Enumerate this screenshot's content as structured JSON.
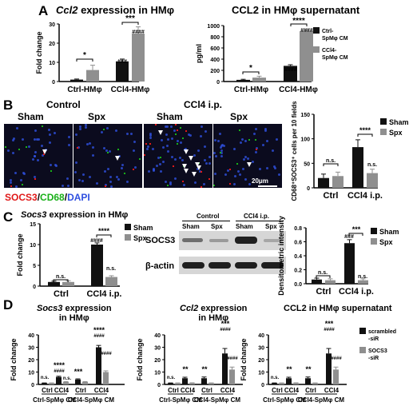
{
  "panels": {
    "A": "A",
    "B": "B",
    "C": "C",
    "D": "D"
  },
  "chart_data": [
    {
      "id": "a1",
      "type": "bar",
      "title_pre": "",
      "title_it": "Ccl2",
      "title_post": " expression in HMφ",
      "ylabel": "Fold change",
      "yticks": [
        "0",
        "10",
        "20",
        "30"
      ],
      "ylim": [
        0,
        30
      ],
      "categories": [
        "Ctrl-HMφ",
        "CCl4-HMφ"
      ],
      "series": [
        {
          "color": "#111111",
          "values": [
            1,
            10.5
          ],
          "err": [
            0.3,
            1.2
          ]
        },
        {
          "color": "#8f8f8f",
          "values": [
            6,
            25
          ],
          "err": [
            2.5,
            3.5
          ]
        }
      ],
      "annotations": [
        "*",
        "***",
        "###",
        "####"
      ]
    },
    {
      "id": "a2",
      "type": "bar",
      "title": "CCL2 in HMφ supernatant",
      "ylabel": "pg/ml",
      "yticks": [
        "0",
        "200",
        "400",
        "600",
        "800",
        "1000"
      ],
      "ylim": [
        0,
        1000
      ],
      "categories": [
        "Ctrl-HMφ",
        "CCl4-HMφ"
      ],
      "series": [
        {
          "name": "Ctrl-SpMφ CM",
          "color": "#111111",
          "values": [
            30,
            280
          ],
          "err": [
            10,
            20
          ]
        },
        {
          "name": "CCl4-SpMφ CM",
          "color": "#8f8f8f",
          "values": [
            70,
            900
          ],
          "err": [
            25,
            30
          ]
        }
      ],
      "annotations": [
        "*",
        "****",
        "####",
        "####"
      ]
    },
    {
      "id": "b",
      "type": "bar",
      "ylabel": "CD68⁺SOCS3⁺ cells per 10 fields",
      "yticks": [
        "0",
        "50",
        "100",
        "150"
      ],
      "ylim": [
        0,
        150
      ],
      "categories": [
        "Ctrl",
        "CCl4 i.p."
      ],
      "series": [
        {
          "name": "Sham",
          "color": "#111111",
          "values": [
            20,
            83
          ],
          "err": [
            8,
            15
          ]
        },
        {
          "name": "Spx",
          "color": "#8f8f8f",
          "values": [
            24,
            30
          ],
          "err": [
            8,
            8
          ]
        }
      ],
      "annotations": [
        "n.s.",
        "****",
        "n.s."
      ]
    },
    {
      "id": "c1",
      "type": "bar",
      "title_it": "Socs3",
      "title_post": " expression in HMφ",
      "ylabel": "Fold change",
      "yticks": [
        "0",
        "5",
        "10",
        "15"
      ],
      "ylim": [
        0,
        15
      ],
      "categories": [
        "Ctrl",
        "CCl4 i.p."
      ],
      "series": [
        {
          "name": "Sham",
          "color": "#111111",
          "values": [
            1,
            10
          ],
          "err": [
            0.2,
            0.4
          ]
        },
        {
          "name": "Spx",
          "color": "#8f8f8f",
          "values": [
            1,
            2.2
          ],
          "err": [
            0.3,
            0.3
          ]
        }
      ],
      "annotations": [
        "n.s.",
        "****",
        "####",
        "n.s."
      ]
    },
    {
      "id": "c2",
      "type": "bar",
      "ylabel": "Densitometric intensity",
      "yticks": [
        "0.0",
        "0.2",
        "0.4",
        "0.6",
        "0.8"
      ],
      "ylim": [
        0,
        0.8
      ],
      "categories": [
        "Ctrl",
        "CCl4 i.p."
      ],
      "series": [
        {
          "name": "Sham",
          "color": "#111111",
          "values": [
            0.06,
            0.58
          ],
          "err": [
            0.02,
            0.05
          ]
        },
        {
          "name": "Spx",
          "color": "#8f8f8f",
          "values": [
            0.05,
            0.05
          ],
          "err": [
            0.02,
            0.02
          ]
        }
      ],
      "annotations": [
        "n.s.",
        "***",
        "###",
        "n.s."
      ]
    },
    {
      "id": "d1",
      "type": "bar",
      "title_it": "Socs3",
      "title_post": " expression",
      "title2": "in HMφ",
      "ylabel": "Fold change",
      "yticks": [
        "0",
        "10",
        "20",
        "30",
        "40"
      ],
      "ylim": [
        0,
        40
      ],
      "groups": [
        "Ctrl-SpMφ CM",
        "CCl4-SpMφ CM"
      ],
      "categories": [
        "Ctrl",
        "CCl4",
        "Ctrl",
        "CCl4"
      ],
      "series": [
        {
          "name": "scrambled-siR",
          "color": "#111111",
          "values": [
            1,
            6,
            4,
            30
          ],
          "err": [
            0.2,
            0.6,
            0.5,
            1.5
          ]
        },
        {
          "name": "SOCS3-siR",
          "color": "#8f8f8f",
          "values": [
            1,
            2,
            2,
            10
          ],
          "err": [
            0.2,
            0.3,
            0.3,
            1
          ]
        }
      ],
      "annotations": [
        "n.s.",
        "****",
        "####",
        "n.s.",
        "***",
        "****",
        "####",
        "####"
      ]
    },
    {
      "id": "d2",
      "type": "bar",
      "title_it": "Ccl2",
      "title_post": " expression",
      "title2": "in HMφ",
      "ylabel": "Fold change",
      "yticks": [
        "0",
        "10",
        "20",
        "30",
        "40"
      ],
      "ylim": [
        0,
        40
      ],
      "groups": [
        "Ctrl-SpMφ CM",
        "CCl4-SpMφ CM"
      ],
      "categories": [
        "Ctrl",
        "CCl4",
        "Ctrl",
        "CCl4"
      ],
      "series": [
        {
          "name": "scrambled-siR",
          "color": "#111111",
          "values": [
            1,
            5,
            5,
            25
          ],
          "err": [
            0.2,
            0.8,
            1,
            4
          ]
        },
        {
          "name": "SOCS3-siR",
          "color": "#8f8f8f",
          "values": [
            1,
            1,
            1,
            12
          ],
          "err": [
            0.2,
            0.3,
            0.2,
            2
          ]
        }
      ],
      "annotations": [
        "n.s.",
        "**",
        "**",
        "***",
        "####",
        "####"
      ]
    },
    {
      "id": "d3",
      "type": "bar",
      "title": "CCL2 in HMφ supernatant",
      "ylabel": "Fold change",
      "yticks": [
        "0",
        "10",
        "20",
        "30",
        "40"
      ],
      "ylim": [
        0,
        40
      ],
      "groups": [
        "Ctrl-SpMφ CM",
        "CCl4-SpMφ CM"
      ],
      "categories": [
        "Ctrl",
        "CCl4",
        "Ctrl",
        "CCl4"
      ],
      "series": [
        {
          "name": "scrambled-siR",
          "color": "#111111",
          "values": [
            1,
            5,
            5,
            25
          ],
          "err": [
            0.2,
            0.8,
            1,
            4
          ]
        },
        {
          "name": "SOCS3-siR",
          "color": "#8f8f8f",
          "values": [
            1,
            1,
            1,
            12
          ],
          "err": [
            0.2,
            0.3,
            0.2,
            2
          ]
        }
      ],
      "annotations": [
        "n.s.",
        "**",
        "**",
        "***",
        "####",
        "####"
      ]
    }
  ],
  "micro": {
    "control": "Control",
    "ccl4": "CCl4 i.p.",
    "sham": "Sham",
    "spx": "Spx",
    "scale": "20μm",
    "stain_a": "SOCS3",
    "slash": "/",
    "stain_b": "CD68",
    "stain_c": "DAPI",
    "colors": {
      "socs3": "#e01818",
      "cd68": "#18b018",
      "dapi": "#3050e0"
    }
  },
  "blot": {
    "control": "Control",
    "ccl4": "CCl4 i.p.",
    "sham": "Sham",
    "spx": "Spx",
    "socs3": "SOCS3",
    "actin": "β-actin"
  }
}
